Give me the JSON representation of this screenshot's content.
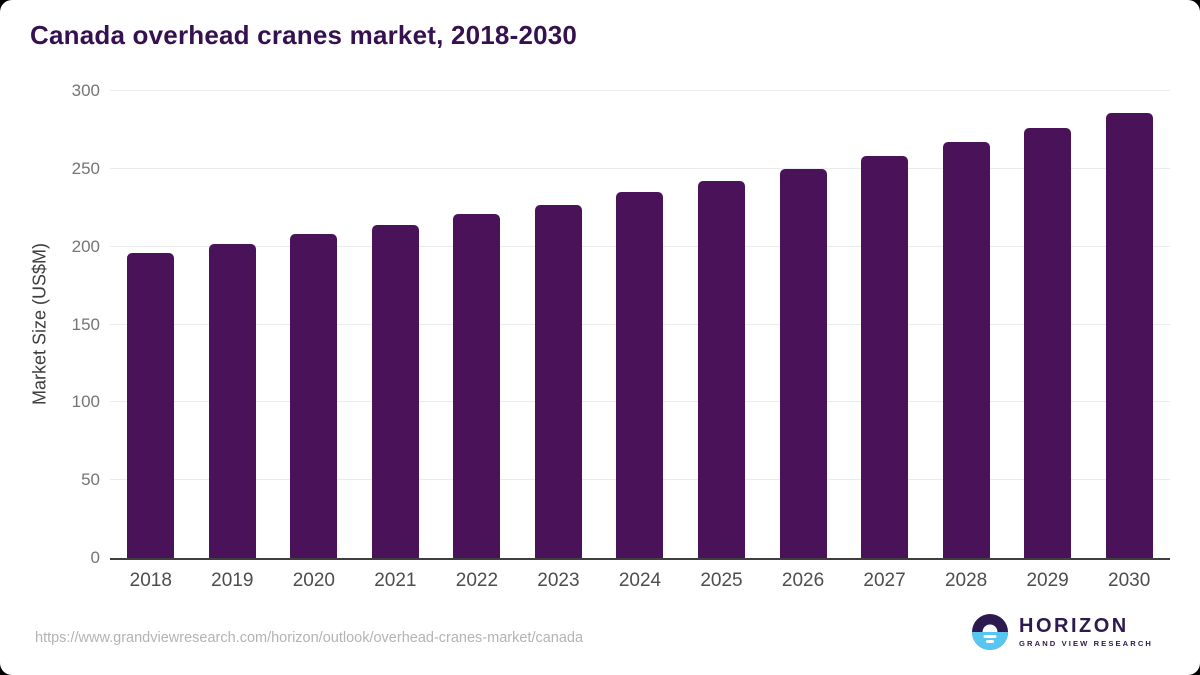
{
  "page": {
    "title": "Canada overhead cranes market, 2018-2030",
    "source_url": "https://www.grandviewresearch.com/horizon/outlook/overhead-cranes-market/canada"
  },
  "logo": {
    "name": "HORIZON",
    "subtitle": "GRAND VIEW RESEARCH",
    "dark_color": "#2d1a4e",
    "blue_color": "#57c7f2"
  },
  "colors": {
    "title": "#35114f",
    "bar": "#4a1258",
    "gridline": "#ebebeb",
    "axis_line": "#3f3f3f",
    "tick_label": "#757575",
    "x_label": "#4d4d4d",
    "url_text": "#b3b3b3"
  },
  "chart_data": {
    "type": "bar",
    "title": "Canada overhead cranes market, 2018-2030",
    "categories": [
      "2018",
      "2019",
      "2020",
      "2021",
      "2022",
      "2023",
      "2024",
      "2025",
      "2026",
      "2027",
      "2028",
      "2029",
      "2030"
    ],
    "values": [
      196,
      202,
      208,
      214,
      221,
      227,
      235,
      242,
      250,
      258,
      267,
      276,
      286
    ],
    "xlabel": "",
    "ylabel": "Market Size (US$M)",
    "ylim": [
      0,
      300
    ],
    "yticks": [
      0,
      50,
      100,
      150,
      200,
      250,
      300
    ],
    "grid": true,
    "legend": false,
    "bar_color": "#4a1258"
  }
}
